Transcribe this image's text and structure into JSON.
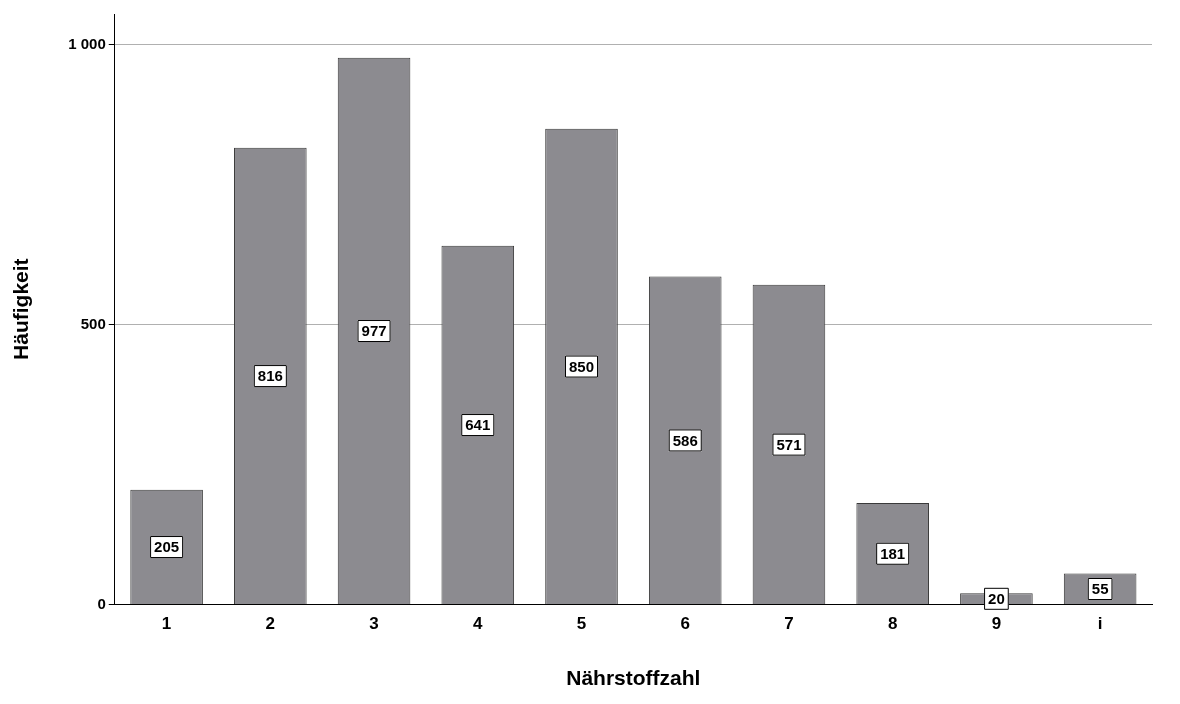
{
  "chart_data": {
    "type": "bar",
    "xlabel": "Nährstoffzahl",
    "ylabel": "Häufigkeit",
    "categories": [
      "1",
      "2",
      "3",
      "4",
      "5",
      "6",
      "7",
      "8",
      "9",
      "i"
    ],
    "values": [
      205,
      816,
      977,
      641,
      850,
      586,
      571,
      181,
      20,
      55
    ],
    "color": "#8c8b90",
    "ylim": [
      0,
      1055
    ],
    "yticks": [
      0,
      500,
      {
        "value": 1000,
        "label": "1 000"
      }
    ],
    "grid": "y",
    "data_labels": true
  }
}
